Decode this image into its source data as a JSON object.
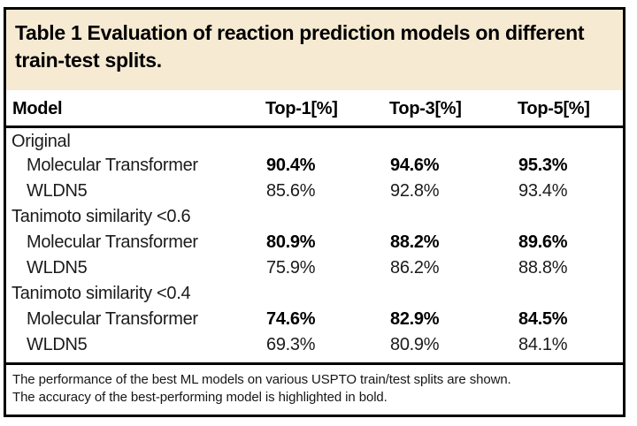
{
  "table": {
    "title_lines": [
      "Table 1 Evaluation of reaction prediction models on different",
      "train-test splits."
    ],
    "header": {
      "model": "Model",
      "top1": "Top-1[%]",
      "top3": "Top-3[%]",
      "top5": "Top-5[%]"
    },
    "sections": [
      {
        "label": "Original",
        "rows": [
          {
            "model": "Molecular Transformer",
            "highlight": true,
            "values": [
              "90.4%",
              "94.6%",
              "95.3%"
            ]
          },
          {
            "model": "WLDN5",
            "highlight": false,
            "values": [
              "85.6%",
              "92.8%",
              "93.4%"
            ]
          }
        ]
      },
      {
        "label": "Tanimoto similarity <0.6",
        "rows": [
          {
            "model": "Molecular Transformer",
            "highlight": true,
            "values": [
              "80.9%",
              "88.2%",
              "89.6%"
            ]
          },
          {
            "model": "WLDN5",
            "highlight": false,
            "values": [
              "75.9%",
              "86.2%",
              "88.8%"
            ]
          }
        ]
      },
      {
        "label": "Tanimoto similarity <0.4",
        "rows": [
          {
            "model": "Molecular Transformer",
            "highlight": true,
            "values": [
              "74.6%",
              "82.9%",
              "84.5%"
            ]
          },
          {
            "model": "WLDN5",
            "highlight": false,
            "values": [
              "69.3%",
              "80.9%",
              "84.1%"
            ]
          }
        ]
      }
    ],
    "footnote_lines": [
      "The performance of the best ML models on various USPTO train/test splits are shown.",
      "The accuracy of the best-performing model is highlighted in bold."
    ],
    "colors": {
      "title_band_bg": "#f6ead2",
      "border": "#000000",
      "text": "#1b1b1b"
    }
  }
}
